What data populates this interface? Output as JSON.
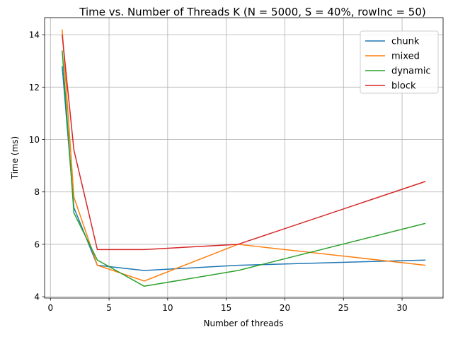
{
  "chart_data": {
    "type": "line",
    "title": "Time vs. Number of Threads K (N = 5000, S = 40%, rowInc = 50)",
    "xlabel": "Number of threads",
    "ylabel": "Time (ms)",
    "xlim": [
      -0.5,
      33.5
    ],
    "ylim": [
      3.95,
      14.65
    ],
    "xticks": [
      0,
      5,
      10,
      15,
      20,
      25,
      30
    ],
    "yticks": [
      4,
      6,
      8,
      10,
      12,
      14
    ],
    "grid": true,
    "legend_position": "top-right",
    "series": [
      {
        "name": "chunk",
        "color": "#1f77b4",
        "x": [
          1,
          2,
          4,
          8,
          16,
          32
        ],
        "y": [
          12.8,
          7.4,
          5.2,
          5.0,
          5.2,
          5.4
        ]
      },
      {
        "name": "mixed",
        "color": "#ff7f0e",
        "x": [
          1,
          2,
          4,
          8,
          16,
          32
        ],
        "y": [
          14.2,
          7.8,
          5.2,
          4.6,
          6.0,
          5.2
        ]
      },
      {
        "name": "dynamic",
        "color": "#2ca02c",
        "x": [
          1,
          2,
          4,
          8,
          16,
          32
        ],
        "y": [
          13.4,
          7.2,
          5.4,
          4.4,
          5.0,
          6.8
        ]
      },
      {
        "name": "block",
        "color": "#d62728",
        "x": [
          1,
          2,
          4,
          8,
          16,
          32
        ],
        "y": [
          14.0,
          9.6,
          5.8,
          5.8,
          6.0,
          8.4
        ]
      }
    ]
  }
}
